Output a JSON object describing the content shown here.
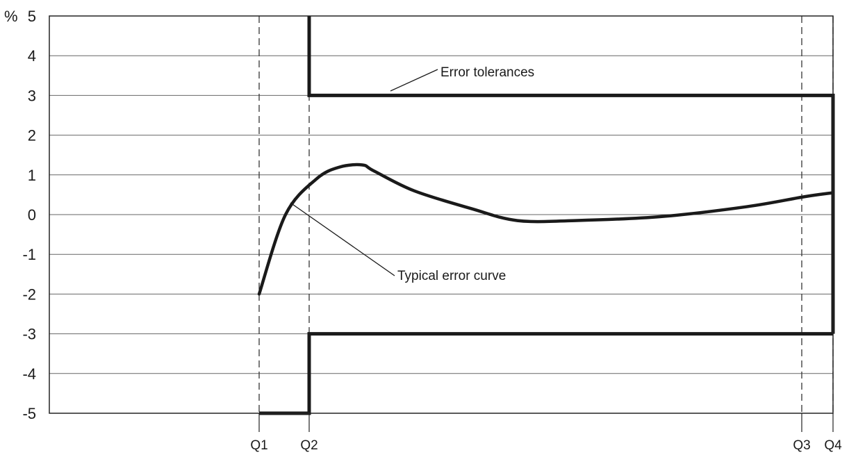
{
  "chart_data": {
    "type": "line",
    "y_unit_label": "%",
    "ylim": [
      -5,
      5
    ],
    "y_ticks": [
      "5",
      "4",
      "3",
      "2",
      "1",
      "0",
      "-1",
      "-2",
      "-3",
      "-4",
      "-5"
    ],
    "x_markers": [
      "Q1",
      "Q2",
      "Q3",
      "Q4"
    ],
    "grid": true,
    "annotations": [
      {
        "text": "Error tolerances"
      },
      {
        "text": "Typical error curve"
      }
    ],
    "series": [
      {
        "name": "Error tolerances",
        "upper": [
          {
            "from": "Q2",
            "to": "Q2",
            "value": 5
          },
          {
            "from": "Q2",
            "to": "Q4",
            "value": 3
          }
        ],
        "lower": [
          {
            "from": "Q1",
            "to": "Q2",
            "value": -5
          },
          {
            "from": "Q2",
            "to": "Q4",
            "value": -3
          }
        ]
      },
      {
        "name": "Typical error curve",
        "points": [
          {
            "x": 0.0,
            "y": -2.0
          },
          {
            "x": 0.046,
            "y": 0.0
          },
          {
            "x": 0.1,
            "y": 0.9
          },
          {
            "x": 0.141,
            "y": 1.2
          },
          {
            "x": 0.18,
            "y": 1.25
          },
          {
            "x": 0.2,
            "y": 1.1
          },
          {
            "x": 0.27,
            "y": 0.6
          },
          {
            "x": 0.37,
            "y": 0.15
          },
          {
            "x": 0.45,
            "y": -0.15
          },
          {
            "x": 0.55,
            "y": -0.15
          },
          {
            "x": 0.7,
            "y": -0.05
          },
          {
            "x": 0.85,
            "y": 0.2
          },
          {
            "x": 0.95,
            "y": 0.45
          },
          {
            "x": 1.0,
            "y": 0.55
          }
        ]
      }
    ]
  }
}
